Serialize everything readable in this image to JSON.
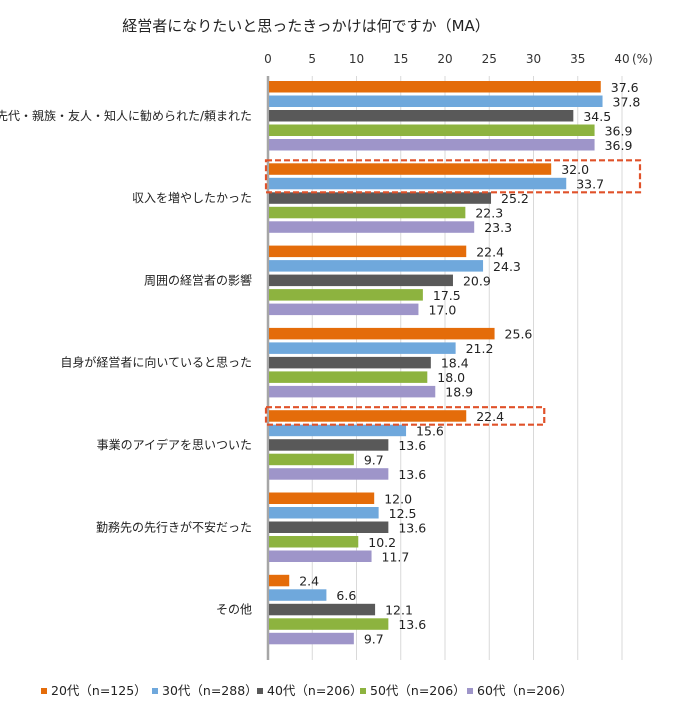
{
  "chart_data": {
    "type": "bar",
    "orientation": "horizontal",
    "title": "経営者になりたいと思ったきっかけは何ですか（MA）",
    "unit": "(%)",
    "xlim": [
      0,
      40
    ],
    "xticks": [
      "0",
      "5",
      "10",
      "15",
      "20",
      "25",
      "30",
      "35",
      "40"
    ],
    "categories": [
      "先代・親族・友人・知人に勧められた/頼まれた",
      "収入を増やしたかった",
      "周囲の経営者の影響",
      "自身が経営者に向いていると思った",
      "事業のアイデアを思いついた",
      "勤務先の先行きが不安だった",
      "その他"
    ],
    "series": [
      {
        "name": "20代（n=125）",
        "color": "#e46c0a",
        "values": [
          37.6,
          32.0,
          22.4,
          25.6,
          22.4,
          12.0,
          2.4
        ],
        "labels": [
          "37.6",
          "32.0",
          "22.4",
          "25.6",
          "22.4",
          "12.0",
          "2.4"
        ]
      },
      {
        "name": "30代（n=288）",
        "color": "#6fa8dc",
        "values": [
          37.8,
          33.7,
          24.3,
          21.2,
          15.6,
          12.5,
          6.6
        ],
        "labels": [
          "37.8",
          "33.7",
          "24.3",
          "21.2",
          "15.6",
          "12.5",
          "6.6"
        ]
      },
      {
        "name": "40代（n=206）",
        "color": "#595959",
        "values": [
          34.5,
          25.2,
          20.9,
          18.4,
          13.6,
          13.6,
          12.1
        ],
        "labels": [
          "34.5",
          "25.2",
          "20.9",
          "18.4",
          "13.6",
          "13.6",
          "12.1"
        ]
      },
      {
        "name": "50代（n=206）",
        "color": "#8db33f",
        "values": [
          36.9,
          22.3,
          17.5,
          18.0,
          9.7,
          10.2,
          13.6
        ],
        "labels": [
          "36.9",
          "22.3",
          "17.5",
          "18.0",
          "9.7",
          "10.2",
          "13.6"
        ]
      },
      {
        "name": "60代（n=206）",
        "color": "#9e95c9",
        "values": [
          36.9,
          23.3,
          17.0,
          18.9,
          13.6,
          11.7,
          9.7
        ],
        "labels": [
          "36.9",
          "23.3",
          "17.0",
          "18.9",
          "13.6",
          "11.7",
          "9.7"
        ]
      }
    ],
    "highlights": [
      {
        "category_index": 1,
        "series": [
          0,
          1
        ]
      },
      {
        "category_index": 4,
        "series": [
          0
        ]
      }
    ],
    "grid": true,
    "legend_position": "bottom"
  }
}
